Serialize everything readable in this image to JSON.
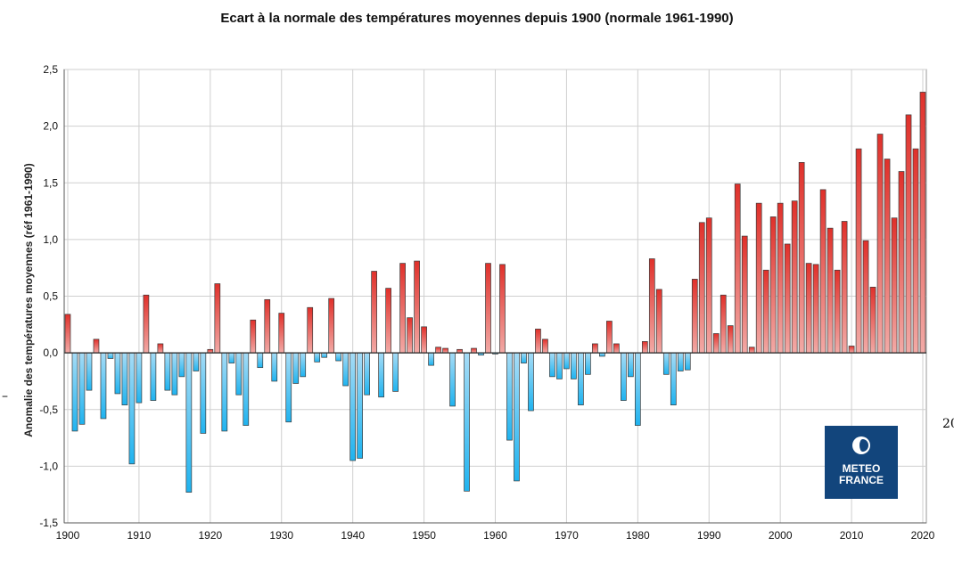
{
  "page": {
    "stray_left": "–",
    "stray_right": "20"
  },
  "logo": {
    "line1": "METEO",
    "line2": "FRANCE",
    "color": "#12457c"
  },
  "chart_data": {
    "type": "bar",
    "title": "Ecart à la normale des températures moyennes depuis 1900 (normale 1961-1990)",
    "xlabel": "",
    "ylabel": "Anomalie des températures moyennes (réf 1961-1990)",
    "ylim": [
      -1.5,
      2.5
    ],
    "xlim": [
      1900,
      2020
    ],
    "y_ticks": [
      "-1,5",
      "-1,0",
      "-0,5",
      "0,0",
      "0,5",
      "1,0",
      "1,5",
      "2,0",
      "2,5"
    ],
    "x_ticks": [
      "1900",
      "1910",
      "1920",
      "1930",
      "1940",
      "1950",
      "1960",
      "1970",
      "1980",
      "1990",
      "2000",
      "2010",
      "2020"
    ],
    "grid": true,
    "colors": {
      "positive": "#d93a36",
      "negative": "#2ea9e6"
    },
    "categories": [
      1900,
      1901,
      1902,
      1903,
      1904,
      1905,
      1906,
      1907,
      1908,
      1909,
      1910,
      1911,
      1912,
      1913,
      1914,
      1915,
      1916,
      1917,
      1918,
      1919,
      1920,
      1921,
      1922,
      1923,
      1924,
      1925,
      1926,
      1927,
      1928,
      1929,
      1930,
      1931,
      1932,
      1933,
      1934,
      1935,
      1936,
      1937,
      1938,
      1939,
      1940,
      1941,
      1942,
      1943,
      1944,
      1945,
      1946,
      1947,
      1948,
      1949,
      1950,
      1951,
      1952,
      1953,
      1954,
      1955,
      1956,
      1957,
      1958,
      1959,
      1960,
      1961,
      1962,
      1963,
      1964,
      1965,
      1966,
      1967,
      1968,
      1969,
      1970,
      1971,
      1972,
      1973,
      1974,
      1975,
      1976,
      1977,
      1978,
      1979,
      1980,
      1981,
      1982,
      1983,
      1984,
      1985,
      1986,
      1987,
      1988,
      1989,
      1990,
      1991,
      1992,
      1993,
      1994,
      1995,
      1996,
      1997,
      1998,
      1999,
      2000,
      2001,
      2002,
      2003,
      2004,
      2005,
      2006,
      2007,
      2008,
      2009,
      2010,
      2011,
      2012,
      2013,
      2014,
      2015,
      2016,
      2017,
      2018,
      2019,
      2020
    ],
    "values": [
      0.34,
      -0.69,
      -0.63,
      -0.33,
      0.12,
      -0.58,
      -0.05,
      -0.36,
      -0.46,
      -0.98,
      -0.44,
      0.51,
      -0.42,
      0.08,
      -0.33,
      -0.37,
      -0.21,
      -1.23,
      -0.16,
      -0.71,
      0.03,
      0.61,
      -0.69,
      -0.09,
      -0.37,
      -0.64,
      0.29,
      -0.13,
      0.47,
      -0.25,
      0.35,
      -0.61,
      -0.27,
      -0.21,
      0.4,
      -0.08,
      -0.04,
      0.48,
      -0.07,
      -0.29,
      -0.95,
      -0.93,
      -0.37,
      0.72,
      -0.39,
      0.57,
      -0.34,
      0.79,
      0.31,
      0.81,
      0.23,
      -0.11,
      0.05,
      0.04,
      -0.47,
      0.03,
      -1.22,
      0.04,
      -0.02,
      0.79,
      -0.01,
      0.78,
      -0.77,
      -1.13,
      -0.09,
      -0.51,
      0.21,
      0.12,
      -0.21,
      -0.23,
      -0.14,
      -0.23,
      -0.46,
      -0.19,
      0.08,
      -0.03,
      0.28,
      0.08,
      -0.42,
      -0.21,
      -0.64,
      0.1,
      0.83,
      0.56,
      -0.19,
      -0.46,
      -0.16,
      -0.15,
      0.65,
      1.15,
      1.19,
      0.17,
      0.51,
      0.24,
      1.49,
      1.03,
      0.05,
      1.32,
      0.73,
      1.2,
      1.32,
      0.96,
      1.34,
      1.68,
      0.79,
      0.78,
      1.44,
      1.1,
      0.73,
      1.16,
      0.06,
      1.8,
      0.99,
      0.58,
      1.93,
      1.71,
      1.19,
      1.6,
      2.1,
      1.8,
      2.3
    ]
  }
}
